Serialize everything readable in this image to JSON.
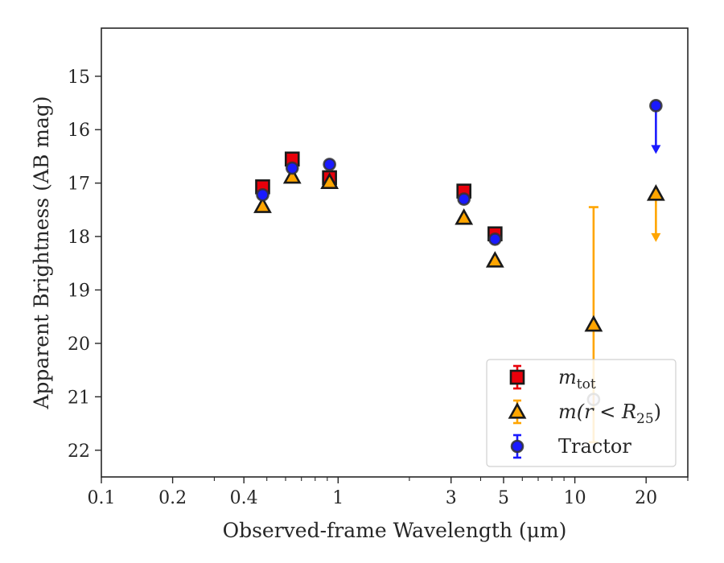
{
  "chart_data": {
    "type": "scatter",
    "xlabel": "Observed-frame Wavelength (μm)",
    "ylabel": "Apparent Brightness (AB mag)",
    "x_scale": "log",
    "xlim": [
      0.1,
      30
    ],
    "ylim": [
      22.5,
      14.1
    ],
    "y_inverted": true,
    "grid": false,
    "legend_position": "bottom-right",
    "x_ticks": [
      {
        "value": 0.1,
        "label": "0.1"
      },
      {
        "value": 0.2,
        "label": "0.2"
      },
      {
        "value": 0.4,
        "label": "0.4"
      },
      {
        "value": 1,
        "label": "1"
      },
      {
        "value": 3,
        "label": "3"
      },
      {
        "value": 5,
        "label": "5"
      },
      {
        "value": 10,
        "label": "10"
      },
      {
        "value": 20,
        "label": "20"
      }
    ],
    "x_minor_ticks": [
      0.3,
      0.5,
      0.6,
      0.7,
      0.8,
      0.9,
      2,
      4,
      6,
      7,
      8,
      9,
      30
    ],
    "y_ticks": [
      {
        "value": 15,
        "label": "15"
      },
      {
        "value": 16,
        "label": "16"
      },
      {
        "value": 17,
        "label": "17"
      },
      {
        "value": 18,
        "label": "18"
      },
      {
        "value": 19,
        "label": "19"
      },
      {
        "value": 20,
        "label": "20"
      },
      {
        "value": 21,
        "label": "21"
      },
      {
        "value": 22,
        "label": "22"
      }
    ],
    "series": [
      {
        "name": "m_tot",
        "legend_main": "m",
        "legend_sub": "tot",
        "marker": "square",
        "color": "#e8000b",
        "edge_color": "#1a1a1a",
        "points": [
          {
            "x": 0.48,
            "y": 17.07
          },
          {
            "x": 0.64,
            "y": 16.55
          },
          {
            "x": 0.92,
            "y": 16.9
          },
          {
            "x": 3.4,
            "y": 17.15
          },
          {
            "x": 4.6,
            "y": 17.95
          }
        ]
      },
      {
        "name": "m(r < R25)",
        "legend_prefix": "m(r < R",
        "legend_sub": "25",
        "legend_suffix": ")",
        "marker": "triangle",
        "color": "#ffa500",
        "edge_color": "#1a1a1a",
        "points": [
          {
            "x": 0.48,
            "y": 17.43
          },
          {
            "x": 0.64,
            "y": 16.88
          },
          {
            "x": 0.92,
            "y": 16.98
          },
          {
            "x": 3.4,
            "y": 17.65
          },
          {
            "x": 4.6,
            "y": 18.45
          },
          {
            "x": 12,
            "y": 19.65,
            "err_low": 2.2,
            "err_high": 2.2
          },
          {
            "x": 22,
            "y": 17.2,
            "upper_limit": true
          }
        ]
      },
      {
        "name": "Tractor",
        "marker": "circle",
        "color": "#1a1aff",
        "edge_color": "#333333",
        "points": [
          {
            "x": 0.48,
            "y": 17.22
          },
          {
            "x": 0.64,
            "y": 16.72
          },
          {
            "x": 0.92,
            "y": 16.65
          },
          {
            "x": 3.4,
            "y": 17.3
          },
          {
            "x": 4.6,
            "y": 18.05
          },
          {
            "x": 12,
            "y": 21.05
          },
          {
            "x": 22,
            "y": 15.55,
            "upper_limit": true
          }
        ]
      }
    ]
  }
}
